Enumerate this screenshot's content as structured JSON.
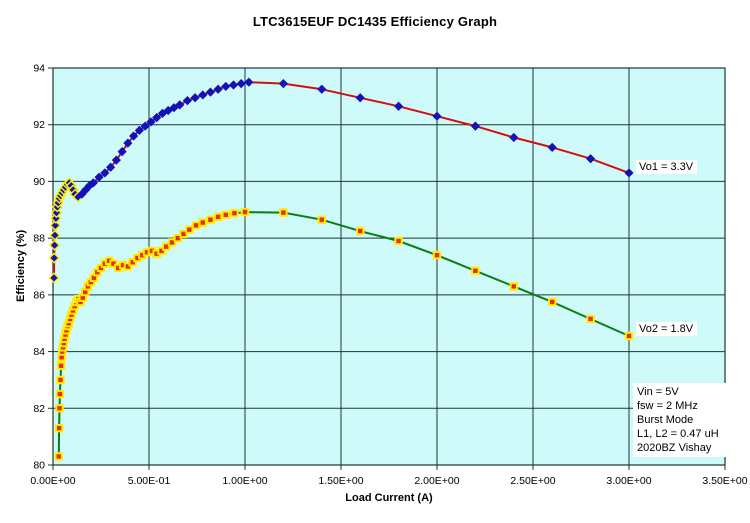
{
  "title": "LTC3615EUF DC1435 Efficiency Graph",
  "chart_data": {
    "type": "line",
    "title": "LTC3615EUF DC1435 Efficiency Graph",
    "xlabel": "Load Current (A)",
    "ylabel": "Efficiency (%)",
    "xlim": [
      0,
      3.5
    ],
    "ylim": [
      80,
      94
    ],
    "grid": true,
    "legend_position": "inline-right",
    "plot_bg_color": "#cffafa",
    "grid_color": "#1c3535",
    "x_tick_labels": [
      "0.00E+00",
      "5.00E-01",
      "1.00E+00",
      "1.50E+00",
      "2.00E+00",
      "2.50E+00",
      "3.00E+00",
      "3.50E+00"
    ],
    "x_tick_values": [
      0,
      0.5,
      1.0,
      1.5,
      2.0,
      2.5,
      3.0,
      3.5
    ],
    "y_tick_values": [
      80,
      82,
      84,
      86,
      88,
      90,
      92,
      94
    ],
    "series": [
      {
        "name": "Vo1 = 3.3V",
        "label": "Vo1 = 3.3V",
        "marker": "diamond",
        "marker_color": "#1212b8",
        "marker_halo_color": "#ffee00",
        "marker_halo_max_x": 0.14,
        "line_color": "#d01010",
        "points": [
          [
            0.005,
            86.6
          ],
          [
            0.006,
            87.3
          ],
          [
            0.008,
            87.75
          ],
          [
            0.01,
            88.1
          ],
          [
            0.012,
            88.45
          ],
          [
            0.015,
            88.7
          ],
          [
            0.018,
            88.9
          ],
          [
            0.022,
            89.1
          ],
          [
            0.027,
            89.25
          ],
          [
            0.033,
            89.4
          ],
          [
            0.04,
            89.5
          ],
          [
            0.048,
            89.6
          ],
          [
            0.056,
            89.7
          ],
          [
            0.065,
            89.8
          ],
          [
            0.075,
            89.9
          ],
          [
            0.085,
            89.95
          ],
          [
            0.095,
            89.85
          ],
          [
            0.105,
            89.7
          ],
          [
            0.115,
            89.55
          ],
          [
            0.13,
            89.45
          ],
          [
            0.15,
            89.55
          ],
          [
            0.17,
            89.7
          ],
          [
            0.19,
            89.85
          ],
          [
            0.21,
            89.95
          ],
          [
            0.24,
            90.15
          ],
          [
            0.27,
            90.3
          ],
          [
            0.3,
            90.5
          ],
          [
            0.33,
            90.75
          ],
          [
            0.36,
            91.05
          ],
          [
            0.39,
            91.35
          ],
          [
            0.42,
            91.6
          ],
          [
            0.45,
            91.8
          ],
          [
            0.48,
            91.95
          ],
          [
            0.51,
            92.1
          ],
          [
            0.54,
            92.25
          ],
          [
            0.57,
            92.4
          ],
          [
            0.6,
            92.5
          ],
          [
            0.63,
            92.6
          ],
          [
            0.66,
            92.7
          ],
          [
            0.7,
            92.85
          ],
          [
            0.74,
            92.95
          ],
          [
            0.78,
            93.05
          ],
          [
            0.82,
            93.15
          ],
          [
            0.86,
            93.25
          ],
          [
            0.9,
            93.35
          ],
          [
            0.94,
            93.4
          ],
          [
            0.98,
            93.45
          ],
          [
            1.02,
            93.5
          ],
          [
            1.2,
            93.45
          ],
          [
            1.4,
            93.25
          ],
          [
            1.6,
            92.95
          ],
          [
            1.8,
            92.65
          ],
          [
            2.0,
            92.3
          ],
          [
            2.2,
            91.95
          ],
          [
            2.4,
            91.55
          ],
          [
            2.6,
            91.2
          ],
          [
            2.8,
            90.8
          ],
          [
            3.0,
            90.3
          ]
        ]
      },
      {
        "name": "Vo2 = 1.8V",
        "label": "Vo2 = 1.8V",
        "marker": "square",
        "marker_color": "#e62e00",
        "marker_edge_color": "#ffec00",
        "line_color": "#0b7d12",
        "points": [
          [
            0.03,
            80.3
          ],
          [
            0.032,
            81.3
          ],
          [
            0.034,
            82.0
          ],
          [
            0.036,
            82.5
          ],
          [
            0.039,
            83.0
          ],
          [
            0.042,
            83.5
          ],
          [
            0.045,
            83.8
          ],
          [
            0.048,
            84.0
          ],
          [
            0.052,
            84.15
          ],
          [
            0.056,
            84.3
          ],
          [
            0.06,
            84.45
          ],
          [
            0.065,
            84.6
          ],
          [
            0.07,
            84.75
          ],
          [
            0.076,
            84.9
          ],
          [
            0.082,
            85.0
          ],
          [
            0.089,
            85.15
          ],
          [
            0.096,
            85.3
          ],
          [
            0.104,
            85.45
          ],
          [
            0.113,
            85.6
          ],
          [
            0.122,
            85.75
          ],
          [
            0.132,
            85.85
          ],
          [
            0.143,
            85.75
          ],
          [
            0.155,
            85.9
          ],
          [
            0.168,
            86.1
          ],
          [
            0.182,
            86.3
          ],
          [
            0.197,
            86.45
          ],
          [
            0.213,
            86.6
          ],
          [
            0.231,
            86.8
          ],
          [
            0.25,
            86.95
          ],
          [
            0.27,
            87.1
          ],
          [
            0.292,
            87.2
          ],
          [
            0.315,
            87.1
          ],
          [
            0.34,
            86.95
          ],
          [
            0.365,
            87.05
          ],
          [
            0.39,
            87.0
          ],
          [
            0.415,
            87.15
          ],
          [
            0.44,
            87.3
          ],
          [
            0.465,
            87.4
          ],
          [
            0.49,
            87.5
          ],
          [
            0.515,
            87.55
          ],
          [
            0.54,
            87.45
          ],
          [
            0.565,
            87.55
          ],
          [
            0.59,
            87.7
          ],
          [
            0.62,
            87.85
          ],
          [
            0.65,
            88.0
          ],
          [
            0.68,
            88.15
          ],
          [
            0.71,
            88.3
          ],
          [
            0.745,
            88.45
          ],
          [
            0.78,
            88.55
          ],
          [
            0.82,
            88.65
          ],
          [
            0.86,
            88.75
          ],
          [
            0.9,
            88.82
          ],
          [
            0.945,
            88.88
          ],
          [
            1.0,
            88.92
          ],
          [
            1.2,
            88.9
          ],
          [
            1.4,
            88.65
          ],
          [
            1.6,
            88.25
          ],
          [
            1.8,
            87.9
          ],
          [
            2.0,
            87.4
          ],
          [
            2.2,
            86.85
          ],
          [
            2.4,
            86.3
          ],
          [
            2.6,
            85.75
          ],
          [
            2.8,
            85.15
          ],
          [
            3.0,
            84.55
          ]
        ]
      }
    ],
    "annotation": {
      "lines": [
        "Vin = 5V",
        "fsw = 2 MHz",
        "Burst Mode",
        "L1, L2 = 0.47 uH",
        "2020BZ Vishay"
      ]
    }
  }
}
